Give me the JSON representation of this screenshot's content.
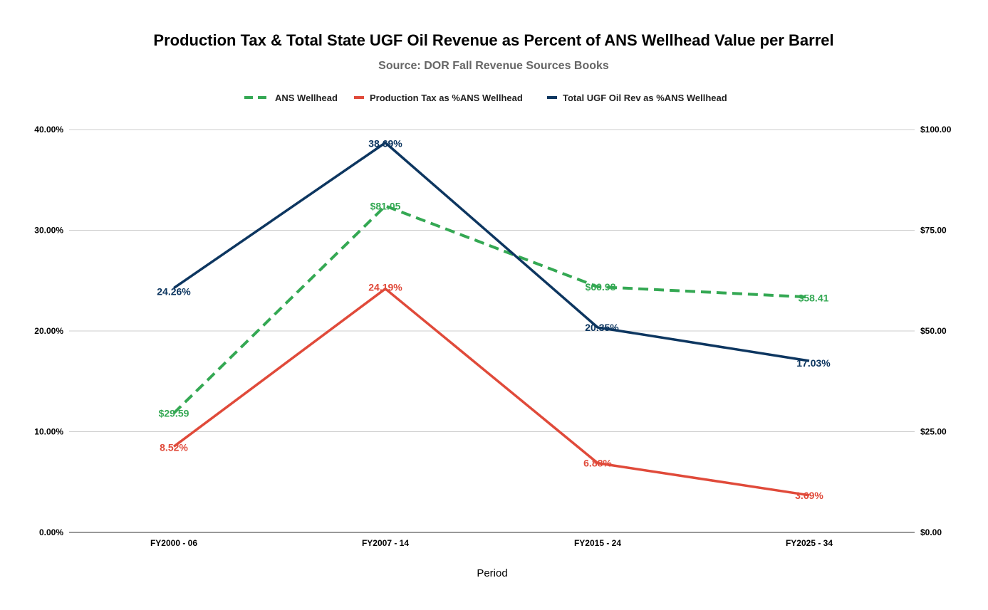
{
  "chart_data": {
    "type": "line",
    "title": "Production Tax & Total State UGF Oil Revenue as Percent of ANS Wellhead Value per Barrel",
    "subtitle": "Source: DOR Fall Revenue Sources Books",
    "xlabel": "Period",
    "categories": [
      "FY2000 - 06",
      "FY2007 - 14",
      "FY2015 - 24",
      "FY2025 - 34"
    ],
    "y_left": {
      "range": [
        0,
        40
      ],
      "ticks": [
        0,
        10,
        20,
        30,
        40
      ],
      "tick_labels": [
        "0.00%",
        "10.00%",
        "20.00%",
        "30.00%",
        "40.00%"
      ]
    },
    "y_right": {
      "range": [
        0,
        100
      ],
      "ticks": [
        0,
        25,
        50,
        75,
        100
      ],
      "tick_labels": [
        "$0.00",
        "$25.00",
        "$50.00",
        "$75.00",
        "$100.00"
      ]
    },
    "grid": true,
    "legend_position": "top",
    "series": [
      {
        "name": "ANS Wellhead",
        "axis": "right",
        "style": "dashed",
        "color": "#34a853",
        "values": [
          29.59,
          81.05,
          60.98,
          58.41
        ],
        "labels": [
          "$29.59",
          "$81.05",
          "$60.98",
          "$58.41"
        ]
      },
      {
        "name": "Production Tax as %ANS Wellhead",
        "axis": "left",
        "style": "solid",
        "color": "#e04a3a",
        "values": [
          8.52,
          24.19,
          6.88,
          3.69
        ],
        "labels": [
          "8.52%",
          "24.19%",
          "6.88%",
          "3.69%"
        ]
      },
      {
        "name": "Total UGF Oil Rev as %ANS Wellhead",
        "axis": "left",
        "style": "solid",
        "color": "#0d3660",
        "values": [
          24.26,
          38.69,
          20.35,
          17.03
        ],
        "labels": [
          "24.26%",
          "38.69%",
          "20.35%",
          "17.03%"
        ]
      }
    ]
  }
}
